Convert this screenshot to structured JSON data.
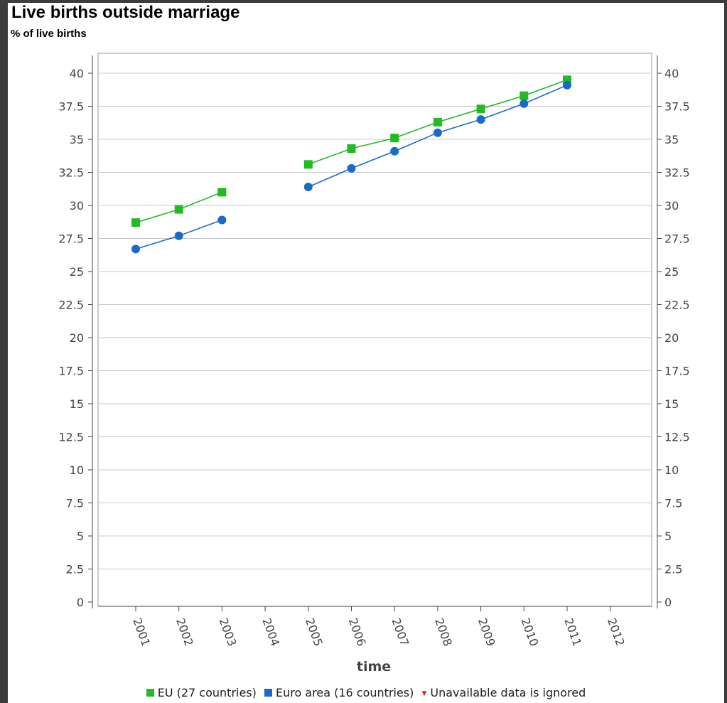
{
  "chart_data": {
    "type": "line",
    "title": "Live births outside marriage",
    "subtitle": "% of live births",
    "xlabel": "time",
    "ylabel": "",
    "x": [
      "2001",
      "2002",
      "2003",
      "2004",
      "2005",
      "2006",
      "2007",
      "2008",
      "2009",
      "2010",
      "2011",
      "2012"
    ],
    "ylim": [
      0,
      40
    ],
    "yticks": [
      "0",
      "2.5",
      "5",
      "7.5",
      "10",
      "12.5",
      "15",
      "17.5",
      "20",
      "22.5",
      "25",
      "27.5",
      "30",
      "32.5",
      "35",
      "37.5",
      "40"
    ],
    "grid": true,
    "legend_position": "bottom",
    "series": [
      {
        "name": "EU (27 countries)",
        "color": "#22bb22",
        "marker": "square",
        "values": [
          28.7,
          29.7,
          31.0,
          null,
          33.1,
          34.3,
          35.1,
          36.3,
          37.3,
          38.3,
          39.5,
          null
        ]
      },
      {
        "name": "Euro area (16 countries)",
        "color": "#1a6ac8",
        "marker": "circle",
        "values": [
          26.7,
          27.7,
          28.9,
          null,
          31.4,
          32.8,
          34.1,
          35.5,
          36.5,
          37.7,
          39.1,
          null
        ]
      }
    ],
    "note": {
      "label": "Unavailable data is ignored",
      "color": "#e02020"
    }
  }
}
